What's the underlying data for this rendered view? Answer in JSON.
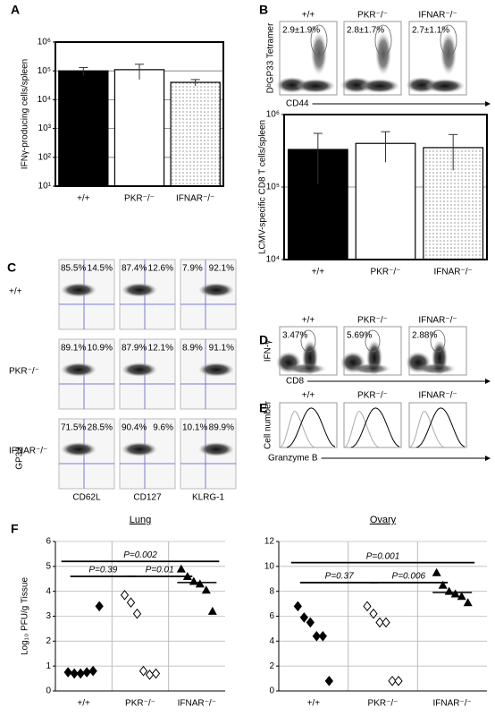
{
  "panel_labels": [
    "A",
    "B",
    "C",
    "D",
    "E",
    "F"
  ],
  "chart_data": [
    {
      "type": "bar",
      "y_label": "IFNγ-producing cells/spleen",
      "categories": [
        "+/+",
        "PKR⁻/⁻",
        "IFNAR⁻/⁻"
      ],
      "values": [
        100000,
        110000,
        40000
      ],
      "errors": [
        30000,
        60000,
        10000
      ],
      "colors": [
        "#000000",
        "#ffffff",
        "#ffffff"
      ],
      "patterns": [
        "solid",
        "solid",
        "dots"
      ],
      "log_scale": true,
      "grid": true,
      "ylim": [
        10,
        1000000
      ],
      "yticks": [
        {
          "value": 10,
          "label": "10¹"
        },
        {
          "value": 100,
          "label": "10²"
        },
        {
          "value": 1000,
          "label": "10³"
        },
        {
          "value": 10000,
          "label": "10⁴"
        },
        {
          "value": 100000,
          "label": "10⁵"
        },
        {
          "value": 1000000,
          "label": "10⁶"
        }
      ]
    },
    {
      "type": "bar",
      "y_label": "LCMV-specific CD8 T cells/spleen",
      "categories": [
        "+/+",
        "PKR⁻/⁻",
        "IFNAR⁻/⁻"
      ],
      "values": [
        330000,
        400000,
        350000
      ],
      "errors": [
        220000,
        180000,
        180000
      ],
      "colors": [
        "#000000",
        "#ffffff",
        "#ffffff"
      ],
      "patterns": [
        "solid",
        "solid",
        "dots"
      ],
      "log_scale": true,
      "grid": true,
      "ylim": [
        10000,
        1000000
      ],
      "yticks": [
        {
          "value": 10000,
          "label": "10⁴"
        },
        {
          "value": 100000,
          "label": "10⁵"
        },
        {
          "value": 1000000,
          "label": "10⁶"
        }
      ]
    },
    {
      "type": "scatter",
      "title": "Lung",
      "y_label": "Log₁₀ PFU/g Tissue",
      "categories": [
        "+/+",
        "PKR⁻/⁻",
        "IFNAR⁻/⁻"
      ],
      "values": [
        [
          0.75,
          0.7,
          0.7,
          0.75,
          0.8,
          3.4
        ],
        [
          3.85,
          3.55,
          3.1,
          0.8,
          0.65,
          0.7
        ],
        [
          4.9,
          4.6,
          4.4,
          4.3,
          4.05,
          3.2
        ]
      ],
      "markers": [
        "filled-diamond",
        "open-diamond",
        "filled-triangle"
      ],
      "means": [
        null,
        null,
        4.35
      ],
      "comparisons": [
        {
          "label": "P=0.002",
          "from": 0,
          "to": 2,
          "y": 5.2
        },
        {
          "label": "P=0.39",
          "from": 0,
          "to": 1,
          "y": 4.6
        },
        {
          "label": "P=0.01",
          "from": 1,
          "to": 2,
          "y": 4.6
        }
      ],
      "grid": true,
      "ylim": [
        0,
        6
      ],
      "yticks": [
        0,
        1,
        2,
        3,
        4,
        5,
        6
      ]
    },
    {
      "type": "scatter",
      "title": "Ovary",
      "categories": [
        "+/+",
        "PKR⁻/⁻",
        "IFNAR⁻/⁻"
      ],
      "values": [
        [
          6.8,
          5.9,
          5.5,
          4.4,
          4.4,
          0.8
        ],
        [
          6.8,
          6.2,
          5.5,
          5.5,
          0.8,
          0.8
        ],
        [
          9.5,
          8.5,
          8.0,
          7.8,
          7.6,
          7.1
        ]
      ],
      "markers": [
        "filled-diamond",
        "open-diamond",
        "filled-triangle"
      ],
      "means": [
        null,
        null,
        7.9
      ],
      "comparisons": [
        {
          "label": "P=0.001",
          "from": 0,
          "to": 2,
          "y": 10.3
        },
        {
          "label": "P=0.37",
          "from": 0,
          "to": 1,
          "y": 8.7
        },
        {
          "label": "P=0.006",
          "from": 1,
          "to": 2,
          "y": 8.7
        }
      ],
      "grid": true,
      "ylim": [
        0,
        12
      ],
      "yticks": [
        0,
        2,
        4,
        6,
        8,
        10,
        12
      ]
    }
  ],
  "panel_b_flow": {
    "y_label": "DᵇGP33 Tetramer",
    "x_label": "CD44",
    "plots": [
      {
        "genotype": "+/+",
        "gate": "2.9±1.9%"
      },
      {
        "genotype": "PKR⁻/⁻",
        "gate": "2.8±1.7%"
      },
      {
        "genotype": "IFNAR⁻/⁻",
        "gate": "2.7±1.1%"
      }
    ]
  },
  "panel_c_flow": {
    "y_label": "GP33",
    "columns": [
      "CD62L",
      "CD127",
      "KLRG-1"
    ],
    "rows": [
      {
        "genotype": "+/+",
        "cells": [
          [
            "85.5%",
            "14.5%"
          ],
          [
            "87.4%",
            "12.6%"
          ],
          [
            "7.9%",
            "92.1%"
          ]
        ]
      },
      {
        "genotype": "PKR⁻/⁻",
        "cells": [
          [
            "89.1%",
            "10.9%"
          ],
          [
            "87.9%",
            "12.1%"
          ],
          [
            "8.9%",
            "91.1%"
          ]
        ]
      },
      {
        "genotype": "IFNAR⁻/⁻",
        "cells": [
          [
            "71.5%",
            "28.5%"
          ],
          [
            "90.4%",
            "9.6%"
          ],
          [
            "10.1%",
            "89.9%"
          ]
        ]
      }
    ]
  },
  "panel_d_flow": {
    "y_label": "IFN-γ",
    "x_label": "CD8",
    "plots": [
      {
        "genotype": "+/+",
        "gate": "3.47%"
      },
      {
        "genotype": "PKR⁻/⁻",
        "gate": "5.69%"
      },
      {
        "genotype": "IFNAR⁻/⁻",
        "gate": "2.88%"
      }
    ]
  },
  "panel_e_hist": {
    "y_label": "Cell number",
    "x_label": "Granzyme B",
    "genotypes": [
      "+/+",
      "PKR⁻/⁻",
      "IFNAR⁻/⁻"
    ]
  }
}
